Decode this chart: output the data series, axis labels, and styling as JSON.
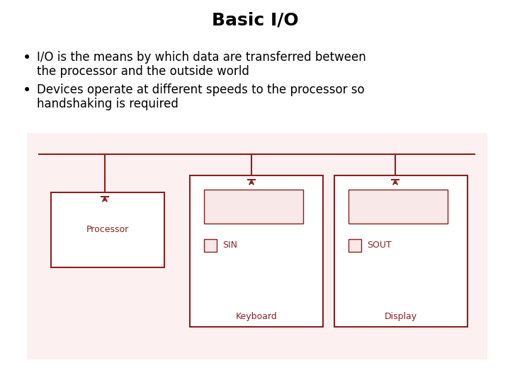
{
  "title": "Basic I/O",
  "title_fontsize": 18,
  "title_fontweight": "bold",
  "bullet1_line1": "I/O is the means by which data are transferred between",
  "bullet1_line2": "the processor and the outside world",
  "bullet2_line1": "Devices operate at different speeds to the processor so",
  "bullet2_line2": "handshaking is required",
  "text_fontsize": 12,
  "bg_color": "#ffffff",
  "box_color": "#8b2020",
  "box_fill": "#ffffff",
  "diagram_bg": "#fdf0f0",
  "line_color": "#8b2020",
  "arrow_color": "#8b2020",
  "inner_box_fill": "#f8e8e8"
}
